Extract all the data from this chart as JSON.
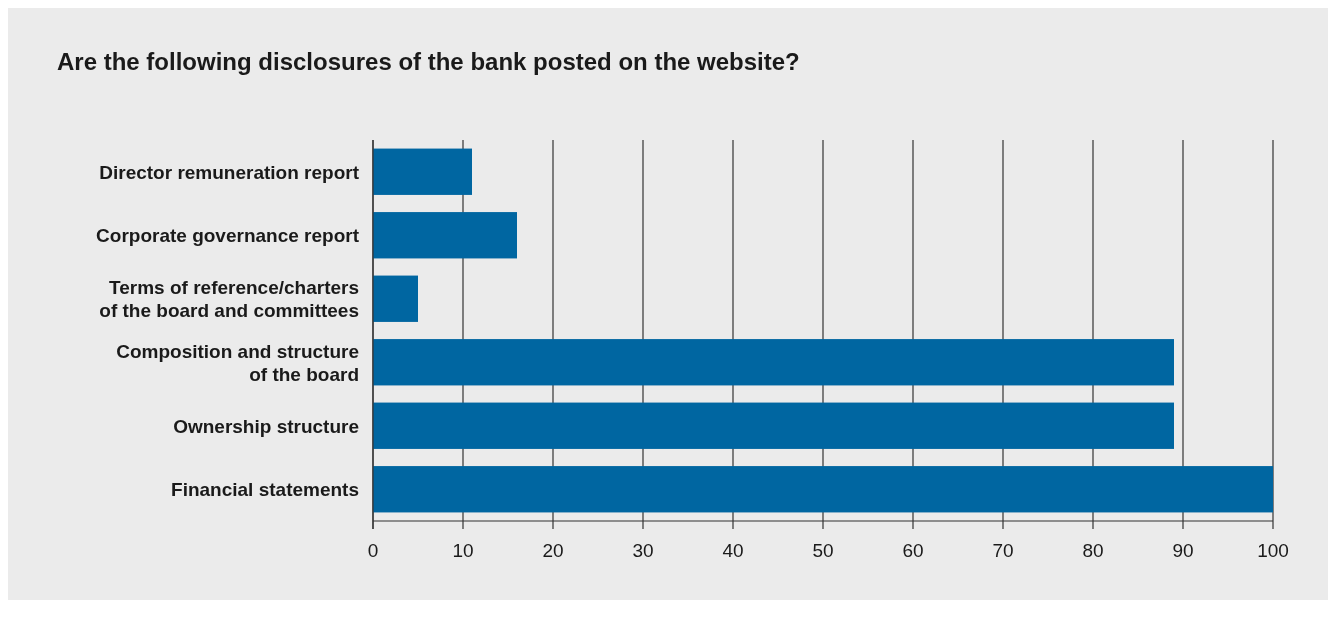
{
  "chart_data": {
    "type": "bar",
    "orientation": "horizontal",
    "title": "Are the following disclosures of the bank posted on the website?",
    "categories": [
      "Director remuneration report",
      "Corporate governance report",
      "Terms of reference/charters\nof the board and committees",
      "Composition and structure\nof the board",
      "Ownership structure",
      "Financial statements"
    ],
    "values": [
      11,
      16,
      5,
      89,
      89,
      100
    ],
    "color": "#0066a1",
    "xlim": [
      0,
      100
    ],
    "xticks": [
      0,
      10,
      20,
      30,
      40,
      50,
      60,
      70,
      80,
      90,
      100
    ],
    "grid": "x"
  }
}
